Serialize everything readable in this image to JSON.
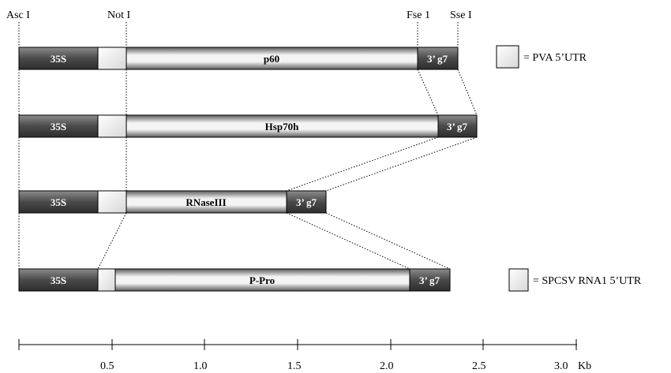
{
  "sites": {
    "asc": "Asc I",
    "not": "Not I",
    "fse": "Fse 1",
    "sse": "Sse I"
  },
  "constructs": [
    {
      "promoter": "35S",
      "gene": "p60",
      "terminator": "3’ g7",
      "utr": "pva"
    },
    {
      "promoter": "35S",
      "gene": "Hsp70h",
      "terminator": "3’ g7",
      "utr": "pva"
    },
    {
      "promoter": "35S",
      "gene": "RNaseIII",
      "terminator": "3’ g7",
      "utr": "pva"
    },
    {
      "promoter": "35S",
      "gene": "P-Pro",
      "terminator": "3’ g7",
      "utr": "spcsv"
    }
  ],
  "legend": {
    "pva": "= PVA 5’UTR",
    "spcsv": "= SPCSV RNA1 5’UTR"
  },
  "scale": {
    "ticks": [
      "0.5",
      "1.0",
      "1.5",
      "2.0",
      "2.5",
      "3.0"
    ],
    "unit": "Kb"
  },
  "colors": {
    "promoter_dark": "#3a3a3a",
    "promoter_light": "#9a9a9a",
    "gene_dark": "#555555",
    "gene_light": "#f2f2f2",
    "utr": "#eeeeee"
  }
}
